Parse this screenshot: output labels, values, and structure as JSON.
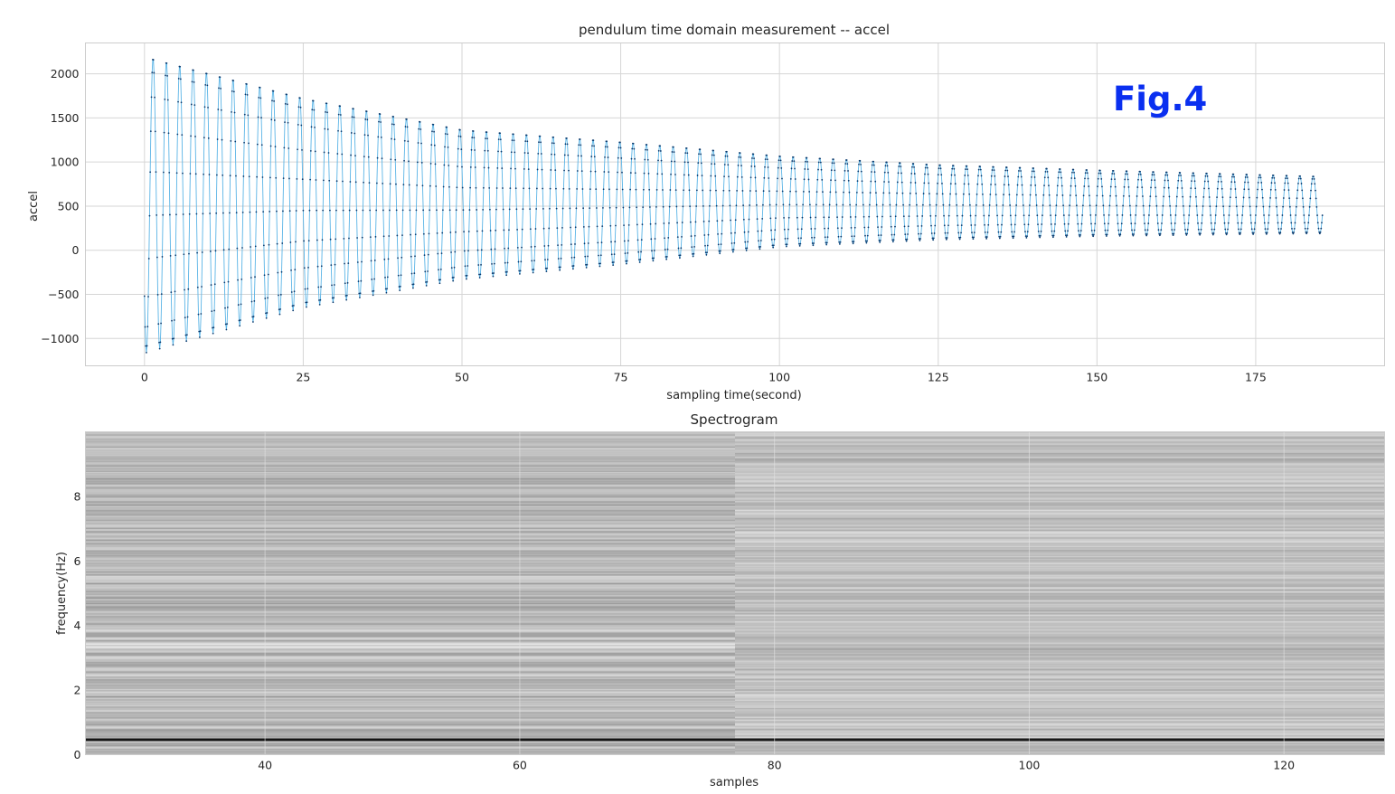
{
  "fig_label": "Fig.4",
  "chart_data": [
    {
      "type": "line",
      "title": "pendulum time domain measurement -- accel",
      "xlabel": "sampling time(second)",
      "ylabel": "accel",
      "xlim": [
        -9.3,
        195.3
      ],
      "ylim": [
        -1310,
        2350
      ],
      "xticks": [
        0,
        25,
        50,
        75,
        100,
        125,
        150,
        175
      ],
      "xtick_labels": [
        "0",
        "25",
        "50",
        "75",
        "100",
        "125",
        "150",
        "175"
      ],
      "yticks": [
        -1000,
        -500,
        0,
        500,
        1000,
        1500,
        2000
      ],
      "ytick_labels": [
        "−1000",
        "−500",
        "0",
        "500",
        "1000",
        "1500",
        "2000"
      ],
      "grid": true,
      "marker": "dot",
      "line_color": "#5ab4e6",
      "marker_color": "#0b3b6e",
      "sample_interval_s": 0.1,
      "period_s": 2.1,
      "duration_s": 185.5,
      "series": [
        {
          "peaks": {
            "t": [
              1.3,
              25,
              50,
              75,
              100,
              125,
              150,
              184
            ],
            "accel": [
              2180,
              1730,
              1370,
              1230,
              1070,
              970,
              910,
              840
            ]
          },
          "troughs": {
            "t": [
              0.3,
              25,
              50,
              75,
              100,
              125,
              150,
              184
            ],
            "accel": [
              -1160,
              -650,
              -330,
              -160,
              40,
              120,
              160,
              190
            ]
          },
          "end_value": 180
        }
      ]
    },
    {
      "type": "heatmap",
      "title": "Spectrogram",
      "xlabel": "samples",
      "ylabel": "frequency(Hz)",
      "xlim": [
        25.9,
        127.9
      ],
      "ylim": [
        0,
        10
      ],
      "xticks": [
        40,
        60,
        80,
        100,
        120
      ],
      "xtick_labels": [
        "40",
        "60",
        "80",
        "100",
        "120"
      ],
      "yticks": [
        0,
        2,
        4,
        6,
        8
      ],
      "ytick_labels": [
        "0",
        "2",
        "4",
        "6",
        "8"
      ],
      "colormap": "grayscale",
      "segment_boundary_sample": 76.9,
      "dominant_frequency_hz": 0.48,
      "bright_band_hz": [
        3.15,
        3.45
      ]
    }
  ]
}
